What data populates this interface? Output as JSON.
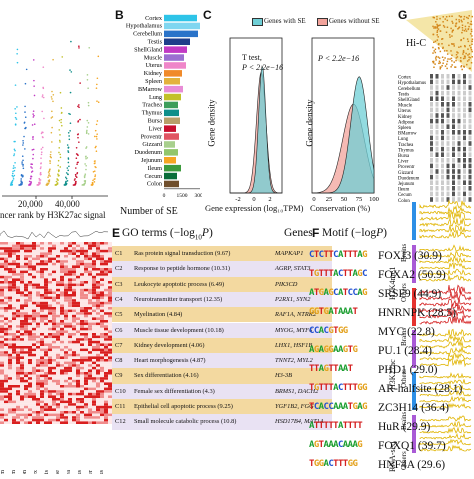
{
  "panel_labels": {
    "B": "B",
    "C": "C",
    "E": "E",
    "F": "F",
    "G": "G"
  },
  "panel_a": {
    "x_label": "ncer rank by H3K27ac signal",
    "ticks": [
      "20,000",
      "40,000"
    ]
  },
  "panel_a_heatmap": {
    "tissues": [
      "Jejunum",
      "Ileum",
      "Colon",
      "Cortex",
      "Testis",
      "Adipose",
      "Trachea",
      "Thymus",
      "Liver",
      "Uterus"
    ]
  },
  "panel_b": {
    "xlabel": "Number of SE",
    "ticks": [
      "0",
      "1500",
      "3000"
    ],
    "tissues": [
      "Cortex",
      "Hypothalamus",
      "Cerebellum",
      "Testis",
      "ShellGland",
      "Muscle",
      "Uterus",
      "Kidney",
      "Spleen",
      "BMarrow",
      "Lung",
      "Trachea",
      "Thymus",
      "Bursa",
      "Liver",
      "Proventr",
      "Gizzard",
      "Duodenum",
      "Jejunum",
      "Ileum",
      "Cecum",
      "Colon"
    ],
    "colors": [
      "#2ec4e8",
      "#7fd6f0",
      "#2a73c9",
      "#1f3e8a",
      "#c23ac4",
      "#9b6fd1",
      "#ef86c9",
      "#f08a2a",
      "#e3b23c",
      "#e88cd6",
      "#c2c12a",
      "#3c9e5a",
      "#0f8f8a",
      "#b8a06a",
      "#c8102e",
      "#e05563",
      "#a8d08d",
      "#92c66b",
      "#f5a623",
      "#3d9b3d",
      "#0a6e3a",
      "#6f4e2b"
    ]
  },
  "panel_c": {
    "legend": [
      "Genes with SE",
      "Genes without SE"
    ],
    "left_test": "T test,",
    "left_p": "P < 2.2e−16",
    "right_p": "P < 2.2e−16",
    "ylabel": "Gene density",
    "left_xlabel": "Gene expression (log₁₀TPM)",
    "right_xlabel": "Conservation (%)",
    "left_ticks": [
      "-2",
      "0",
      "2"
    ],
    "right_ticks": [
      "0",
      "25",
      "50",
      "75",
      "100"
    ],
    "colors": {
      "with": "#6fcfd6",
      "without": "#f2a39b"
    }
  },
  "panel_e": {
    "title_prefix": "GO terms (−log",
    "title_sub": "10",
    "title_p": "P",
    "title_suffix": ")",
    "genes_header": "Genes",
    "rows": [
      {
        "c": "C1",
        "term": "Ras protein signal transduction (9.67)",
        "genes": "MAPKAP1"
      },
      {
        "c": "C2",
        "term": "Response to peptide hormone (10.31)",
        "genes": "AGRP, STAT3"
      },
      {
        "c": "C3",
        "term": "Leukocyte apoptotic process (6.49)",
        "genes": "PIK3CD"
      },
      {
        "c": "C4",
        "term": "Neurotransmitter transport (12.35)",
        "genes": "P2RX1, SYN2"
      },
      {
        "c": "C5",
        "term": "Myelination (4.84)",
        "genes": "RAF1A, NTRK2"
      },
      {
        "c": "C6",
        "term": "Muscle tissue development (10.18)",
        "genes": "MYOG, MYF6"
      },
      {
        "c": "C7",
        "term": "Kidney development (4.06)",
        "genes": "LHX1, HSF1B"
      },
      {
        "c": "C8",
        "term": "Heart morphogenesis (4.87)",
        "genes": "TNNT2, MYL2"
      },
      {
        "c": "C9",
        "term": "Sex differentiation (4.16)",
        "genes": "H3-3B"
      },
      {
        "c": "C10",
        "term": "Female sex differentiation (4.3)",
        "genes": "BRMS1, DACH2"
      },
      {
        "c": "C11",
        "term": "Epithelial cell apoptotic process (9.25)",
        "genes": "YGF1B2, FGG"
      },
      {
        "c": "C12",
        "term": "Small molecule catabolic process (10.8)",
        "genes": "HSD17B4, MAT1A"
      }
    ],
    "band_colors": [
      "#f3d9a0",
      "#e9e2f3"
    ]
  },
  "panel_f": {
    "title_prefix": "Motif (−log",
    "title_p": "P",
    "title_suffix": ")",
    "rows": [
      {
        "logo": "CTCTTCATTTAG",
        "name": "FOXJ3 (30.9)"
      },
      {
        "logo": "TGTTTACTTAGC",
        "name": "FOXA2 (50.9)"
      },
      {
        "logo": "ATGAGCATCCAG",
        "name": "SRSF9 (44.9)"
      },
      {
        "logo": "GGTGATAAAT",
        "name": "HNRNPK (28.5)"
      },
      {
        "logo": "CCACGTGG",
        "name": "MYC (22.8)"
      },
      {
        "logo": "AGAGGAAGTG",
        "name": "PU.1 (28.4)"
      },
      {
        "logo": "TTAGTTAAT",
        "name": "PHD1 (29.0)"
      },
      {
        "logo": "TGTTTACTTTGG",
        "name": "AR-halfsite (28.1)"
      },
      {
        "logo": "TCACCAAATGAG",
        "name": "ZC3H14 (36.4)"
      },
      {
        "logo": "ATTTTTATTTT",
        "name": "HuR (29.9)"
      },
      {
        "logo": "AGTAAACAAAG",
        "name": "FOXQ1 (39.7)"
      },
      {
        "logo": "TGGACTTTGG",
        "name": "HNF4A (29.6)"
      }
    ]
  },
  "panel_g": {
    "hic_label": "Hi-C",
    "tissues": [
      "Cortex",
      "Hypothalamus",
      "Cerebellum",
      "Testis",
      "ShellGland",
      "Muscle",
      "Uterus",
      "Kidney",
      "Adipose",
      "Spleen",
      "BMarrow",
      "Lung",
      "Trachea",
      "Thymus",
      "Bursa",
      "Liver",
      "Proventr",
      "Gizzard",
      "Duodenum",
      "Jejunum",
      "Ileum",
      "Cecum",
      "Colon"
    ],
    "group_labels": {
      "brains": "Brains",
      "others": "Others"
    },
    "assay_labels": [
      "H3K4me1",
      "H3K27ac",
      "RNA-seq"
    ]
  }
}
